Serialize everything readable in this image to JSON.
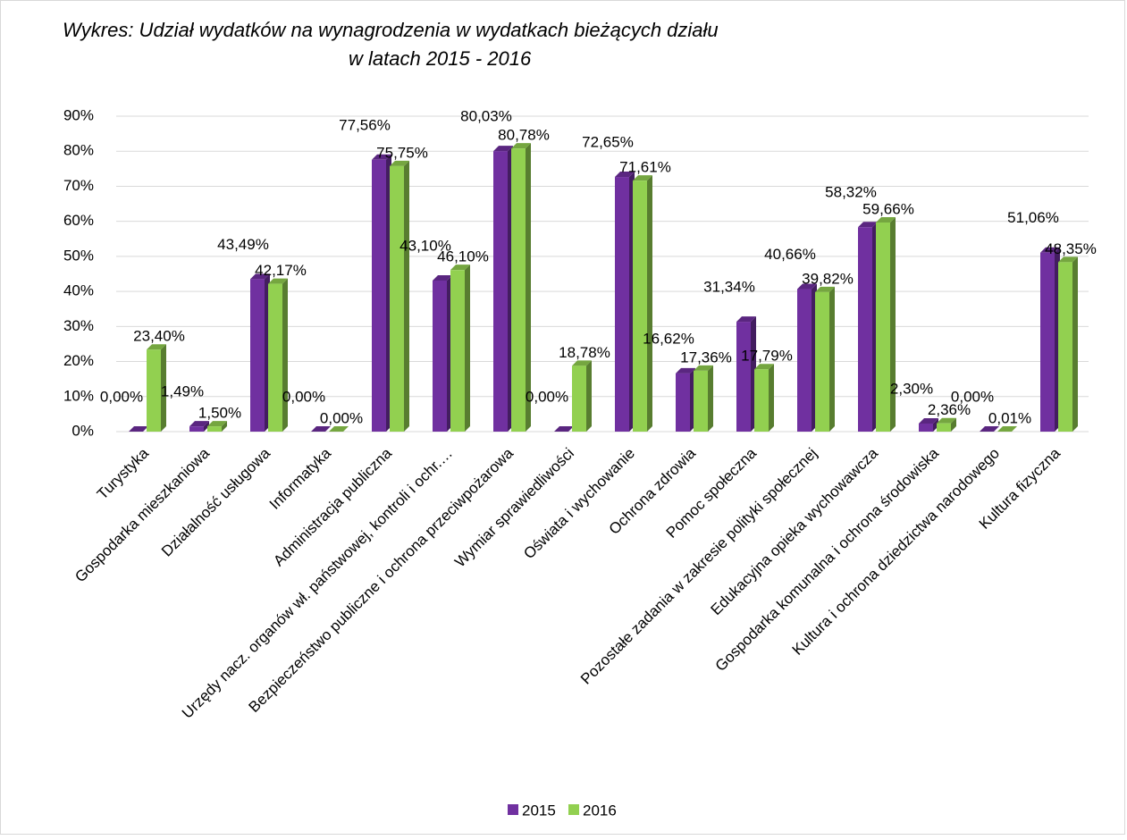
{
  "chart_data": {
    "type": "bar",
    "title": "Wykres: Udział wydatków na wynagrodzenia w wydatkach bieżących działu",
    "subtitle": "w latach   2015 - 2016",
    "categories": [
      "Turystyka",
      "Gospodarka mieszkaniowa",
      "Działalność usługowa",
      "Informatyka",
      "Administracja publiczna",
      "Urzędy nacz. organów wł. państwowej, kontroli i ochr.…",
      "Bezpieczeństwo publiczne i ochrona przeciwpożarowa",
      "Wymiar sprawiedliwości",
      "Oświata i wychowanie",
      "Ochrona zdrowia",
      "Pomoc społeczna",
      "Pozostałe zadania w zakresie polityki społecznej",
      "Edukacyjna opieka wychowawcza",
      "Gospodarka komunalna i ochrona środowiska",
      "Kultura i ochrona dziedzictwa narodowego",
      "Kultura fizyczna"
    ],
    "series": [
      {
        "name": "2015",
        "color": "#7030a0",
        "values": [
          0,
          1.49,
          43.49,
          0,
          77.56,
          43.1,
          80.03,
          0,
          72.65,
          16.62,
          31.34,
          40.66,
          58.32,
          2.3,
          0,
          51.06
        ],
        "value_labels": [
          "0,00%",
          "1,49%",
          "43,49%",
          "0,00%",
          "77,56%",
          "43,10%",
          "80,03%",
          "0,00%",
          "72,65%",
          "16,62%",
          "31,34%",
          "40,66%",
          "58,32%",
          "2,30%",
          "0,00%",
          "51,06%"
        ]
      },
      {
        "name": "2016",
        "color": "#92d050",
        "values": [
          23.4,
          1.5,
          42.17,
          0,
          75.75,
          46.1,
          80.78,
          18.78,
          71.61,
          17.36,
          17.79,
          39.82,
          59.66,
          2.36,
          0.01,
          48.35
        ],
        "value_labels": [
          "23,40%",
          "1,50%",
          "42,17%",
          "0,00%",
          "75,75%",
          "46,10%",
          "80,78%",
          "18,78%",
          "71,61%",
          "17,36%",
          "17,79%",
          "39,82%",
          "59,66%",
          "2,36%",
          "0,01%",
          "48,35%"
        ]
      }
    ],
    "ylim": [
      0,
      90
    ],
    "yticks": [
      {
        "value": 0,
        "label": "0%"
      },
      {
        "value": 10,
        "label": "10%"
      },
      {
        "value": 20,
        "label": "20%"
      },
      {
        "value": 30,
        "label": "30%"
      },
      {
        "value": 40,
        "label": "40%"
      },
      {
        "value": 50,
        "label": "50%"
      },
      {
        "value": 60,
        "label": "60%"
      },
      {
        "value": 70,
        "label": "70%"
      },
      {
        "value": 80,
        "label": "80%"
      },
      {
        "value": 90,
        "label": "90%"
      }
    ],
    "grid": true,
    "legend": "bottom"
  }
}
